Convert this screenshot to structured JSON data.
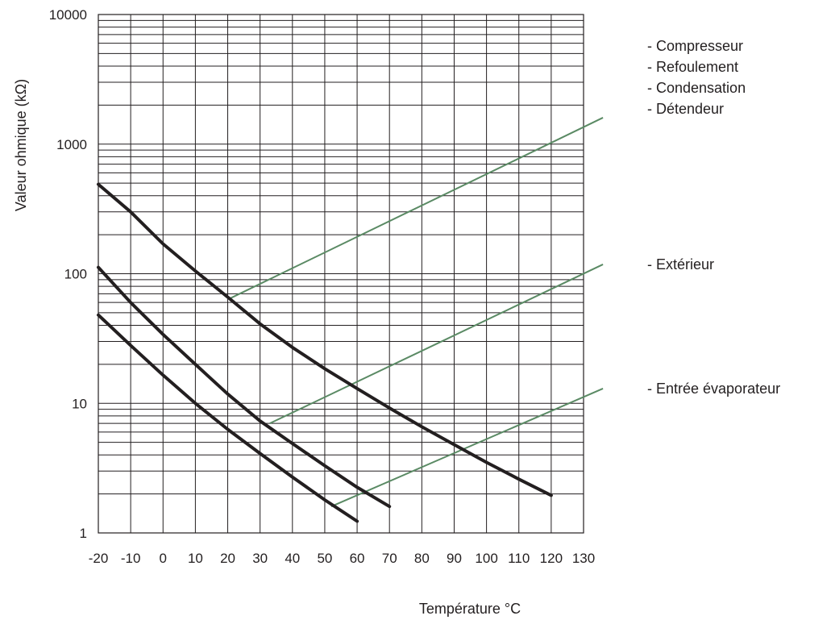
{
  "chart_data": {
    "type": "line",
    "xlabel": "Température  °C",
    "ylabel": "Valeur ohmique  (kΩ)",
    "x_ticks": [
      -20,
      -10,
      0,
      10,
      20,
      30,
      40,
      50,
      60,
      70,
      80,
      90,
      100,
      110,
      120,
      130
    ],
    "y_ticks": [
      1,
      10,
      100,
      1000,
      10000
    ],
    "y_scale": "log",
    "xlim": [
      -20,
      130
    ],
    "ylim": [
      1,
      10000
    ],
    "grid": true,
    "curve_color": "#231f20",
    "leader_color": "#5a8a64",
    "series": [
      {
        "x": [
          -20,
          -10,
          0,
          10,
          20,
          30,
          40,
          50,
          60,
          70,
          80,
          90,
          100,
          110,
          120
        ],
        "y": [
          490,
          300,
          170,
          105,
          66,
          41,
          27,
          18.5,
          13,
          9.2,
          6.6,
          4.8,
          3.5,
          2.6,
          1.95
        ]
      },
      {
        "x": [
          -20,
          -10,
          0,
          10,
          20,
          30,
          40,
          50,
          60,
          70
        ],
        "y": [
          112,
          60,
          34,
          20,
          11.8,
          7.3,
          4.9,
          3.3,
          2.25,
          1.6
        ]
      },
      {
        "x": [
          -20,
          -10,
          0,
          10,
          20,
          30,
          40,
          50,
          60
        ],
        "y": [
          48,
          28,
          16.5,
          10,
          6.3,
          4.1,
          2.7,
          1.8,
          1.23
        ]
      }
    ],
    "legends": [
      {
        "lines": [
          "- Compresseur",
          "- Refoulement",
          "- Condensation",
          "- Détendeur"
        ],
        "pointer": {
          "from": [
            21,
            65
          ],
          "to": [
            136,
            1600
          ]
        }
      },
      {
        "lines": [
          "- Extérieur"
        ],
        "pointer": {
          "from": [
            33,
            7
          ],
          "to": [
            136,
            118
          ]
        }
      },
      {
        "lines": [
          "- Entrée évaporateur"
        ],
        "pointer": {
          "from": [
            52,
            1.6
          ],
          "to": [
            136,
            13
          ]
        }
      }
    ]
  }
}
